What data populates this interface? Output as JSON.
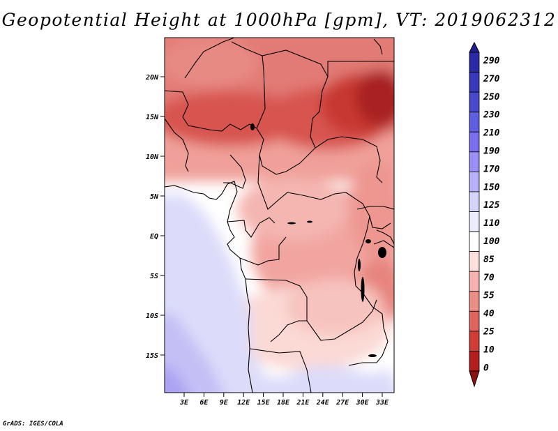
{
  "title": "Geopotential Height at 1000hPa [gpm], VT: 2019062312",
  "credit": "GrADS: IGES/COLA",
  "map": {
    "variable": "Geopotential Height at 1000hPa",
    "units": "gpm",
    "valid_time": "2019062312",
    "lat_labels": [
      "20N",
      "15N",
      "10N",
      "5N",
      "EQ",
      "5S",
      "10S",
      "15S"
    ],
    "lon_labels": [
      "3E",
      "6E",
      "9E",
      "12E",
      "15E",
      "18E",
      "21E",
      "24E",
      "27E",
      "30E",
      "33E"
    ]
  },
  "colorbar": {
    "levels": [
      "290",
      "270",
      "250",
      "230",
      "210",
      "190",
      "170",
      "150",
      "125",
      "110",
      "100",
      "85",
      "70",
      "55",
      "40",
      "25",
      "10",
      "0"
    ],
    "colors": [
      "#1f1f8f",
      "#2a2aa8",
      "#3838bb",
      "#4a4acd",
      "#5e5ee0",
      "#7b6ff0",
      "#9a8ff6",
      "#b7b0fa",
      "#d5d5fb",
      "#ecedfc",
      "#ffffff",
      "#fde0dc",
      "#f7b2ad",
      "#ec8d88",
      "#e06460",
      "#d23c37",
      "#b41e1e",
      "#8f1212"
    ]
  }
}
